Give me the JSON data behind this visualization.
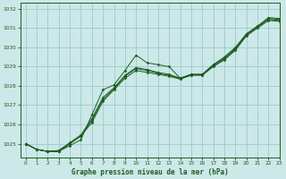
{
  "title": "Graphe pression niveau de la mer (hPa)",
  "background_color": "#cce8e8",
  "grid_color": "#99cccc",
  "line_color": "#1e5c1e",
  "xlim": [
    -0.5,
    23
  ],
  "ylim": [
    1024.3,
    1032.3
  ],
  "yticks": [
    1025,
    1026,
    1027,
    1028,
    1029,
    1030,
    1031,
    1032
  ],
  "xticks": [
    0,
    1,
    2,
    3,
    4,
    5,
    6,
    7,
    8,
    9,
    10,
    11,
    12,
    13,
    14,
    15,
    16,
    17,
    18,
    19,
    20,
    21,
    22,
    23
  ],
  "series1_x": [
    0,
    1,
    2,
    3,
    4,
    5,
    6,
    7,
    8,
    9,
    10,
    11,
    12,
    13,
    14,
    15,
    16,
    17,
    18,
    19,
    20,
    21,
    22,
    23
  ],
  "series1_y": [
    1025.0,
    1024.7,
    1024.6,
    1024.6,
    1024.9,
    1025.2,
    1026.5,
    1027.8,
    1028.05,
    1028.8,
    1029.6,
    1029.2,
    1029.1,
    1029.0,
    1028.4,
    1028.6,
    1028.6,
    1029.1,
    1029.5,
    1030.0,
    1030.7,
    1031.1,
    1031.55,
    1031.5
  ],
  "series2_x": [
    0,
    1,
    2,
    3,
    4,
    5,
    6,
    7,
    8,
    9,
    10,
    11,
    12,
    13,
    14,
    15,
    16,
    17,
    18,
    19,
    20,
    21,
    22,
    23
  ],
  "series2_y": [
    1025.0,
    1024.7,
    1024.6,
    1024.6,
    1025.0,
    1025.4,
    1026.1,
    1027.2,
    1027.8,
    1028.4,
    1028.8,
    1028.7,
    1028.6,
    1028.5,
    1028.35,
    1028.55,
    1028.55,
    1029.0,
    1029.35,
    1029.85,
    1030.6,
    1031.0,
    1031.4,
    1031.35
  ],
  "series3_x": [
    0,
    1,
    2,
    3,
    4,
    5,
    6,
    7,
    8,
    9,
    10,
    11,
    12,
    13,
    14,
    15,
    16,
    17,
    18,
    19,
    20,
    21,
    22,
    23
  ],
  "series3_y": [
    1025.0,
    1024.7,
    1024.6,
    1024.6,
    1025.0,
    1025.4,
    1026.2,
    1027.3,
    1027.85,
    1028.5,
    1028.9,
    1028.8,
    1028.65,
    1028.55,
    1028.38,
    1028.58,
    1028.58,
    1029.05,
    1029.4,
    1029.9,
    1030.65,
    1031.05,
    1031.45,
    1031.4
  ],
  "series4_x": [
    0,
    1,
    2,
    3,
    4,
    5,
    6,
    7,
    8,
    9,
    10,
    11,
    12,
    13,
    14,
    15,
    16,
    17,
    18,
    19,
    20,
    21,
    22,
    23
  ],
  "series4_y": [
    1025.0,
    1024.7,
    1024.6,
    1024.65,
    1025.05,
    1025.45,
    1026.3,
    1027.4,
    1027.9,
    1028.55,
    1028.95,
    1028.85,
    1028.7,
    1028.6,
    1028.4,
    1028.6,
    1028.6,
    1029.1,
    1029.45,
    1029.95,
    1030.7,
    1031.1,
    1031.5,
    1031.45
  ]
}
